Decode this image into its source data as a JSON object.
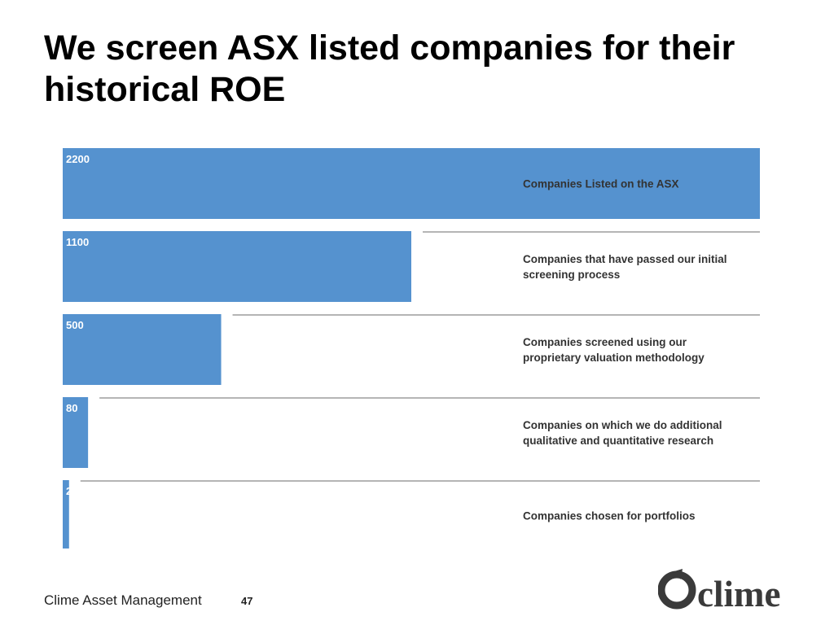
{
  "slide": {
    "title": "We screen ASX listed companies for their historical ROE"
  },
  "chart_data": {
    "type": "bar",
    "orientation": "horizontal",
    "categories": [
      "Companies Listed on the ASX",
      "Companies that have passed our initial screening process",
      "Companies screened using our proprietary valuation methodology",
      "Companies on which we do additional qualitative and quantitative research",
      "Companies chosen for portfolios"
    ],
    "label_lines": [
      [
        "Companies Listed on the ASX"
      ],
      [
        "Companies that have passed our initial",
        "screening process"
      ],
      [
        "Companies screened using our",
        "proprietary valuation methodology"
      ],
      [
        "Companies on which we do additional",
        "qualitative and quantitative research"
      ],
      [
        "Companies chosen for portfolios"
      ]
    ],
    "values": [
      2200,
      1100,
      500,
      80,
      20
    ],
    "xlim": [
      0,
      2200
    ],
    "bar_color": "#5592cf",
    "grid": false,
    "legend": "none"
  },
  "footer": {
    "company": "Clime Asset Management",
    "page_number": "47"
  },
  "logo": {
    "wordmark": "clime",
    "color": "#3a3a3a"
  }
}
